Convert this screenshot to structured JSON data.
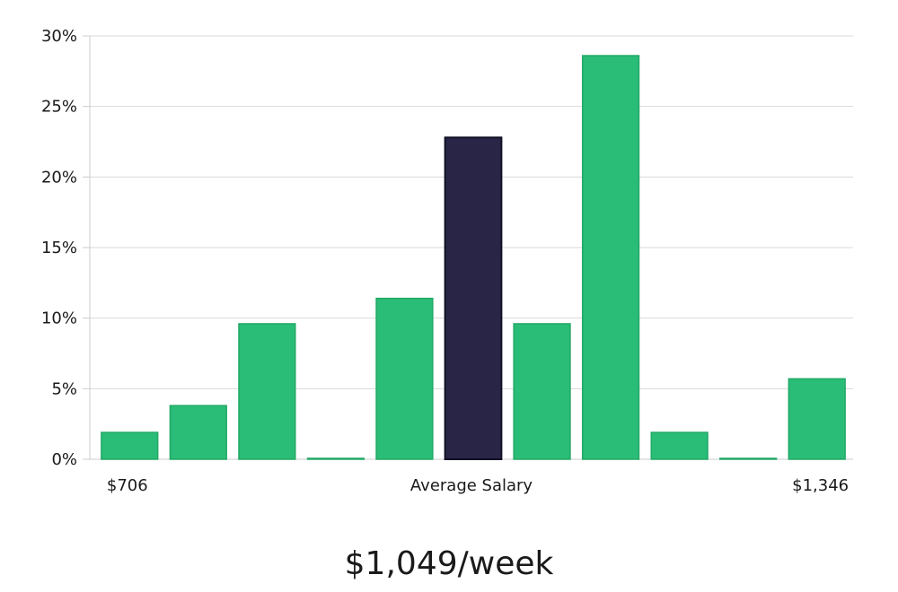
{
  "chart_data": {
    "type": "bar",
    "bins": 11,
    "values": [
      1.9,
      3.8,
      9.6,
      0,
      11.4,
      22.8,
      9.6,
      28.6,
      1.9,
      0,
      5.7
    ],
    "highlight_index": 5,
    "y_ticks": [
      "0%",
      "5%",
      "10%",
      "15%",
      "20%",
      "25%",
      "30%"
    ],
    "ylim": [
      0,
      30
    ],
    "x_labels": {
      "min": "$706",
      "center": "Average Salary",
      "max": "$1,346"
    },
    "grid": true,
    "colors": {
      "bar": "#2abd77",
      "bar_edge": "#22a866",
      "highlight": "#282546",
      "highlight_edge": "#111026",
      "grid": "#d9d9d9",
      "axis": "#cccccc"
    }
  },
  "average_salary": "$1,049/week"
}
